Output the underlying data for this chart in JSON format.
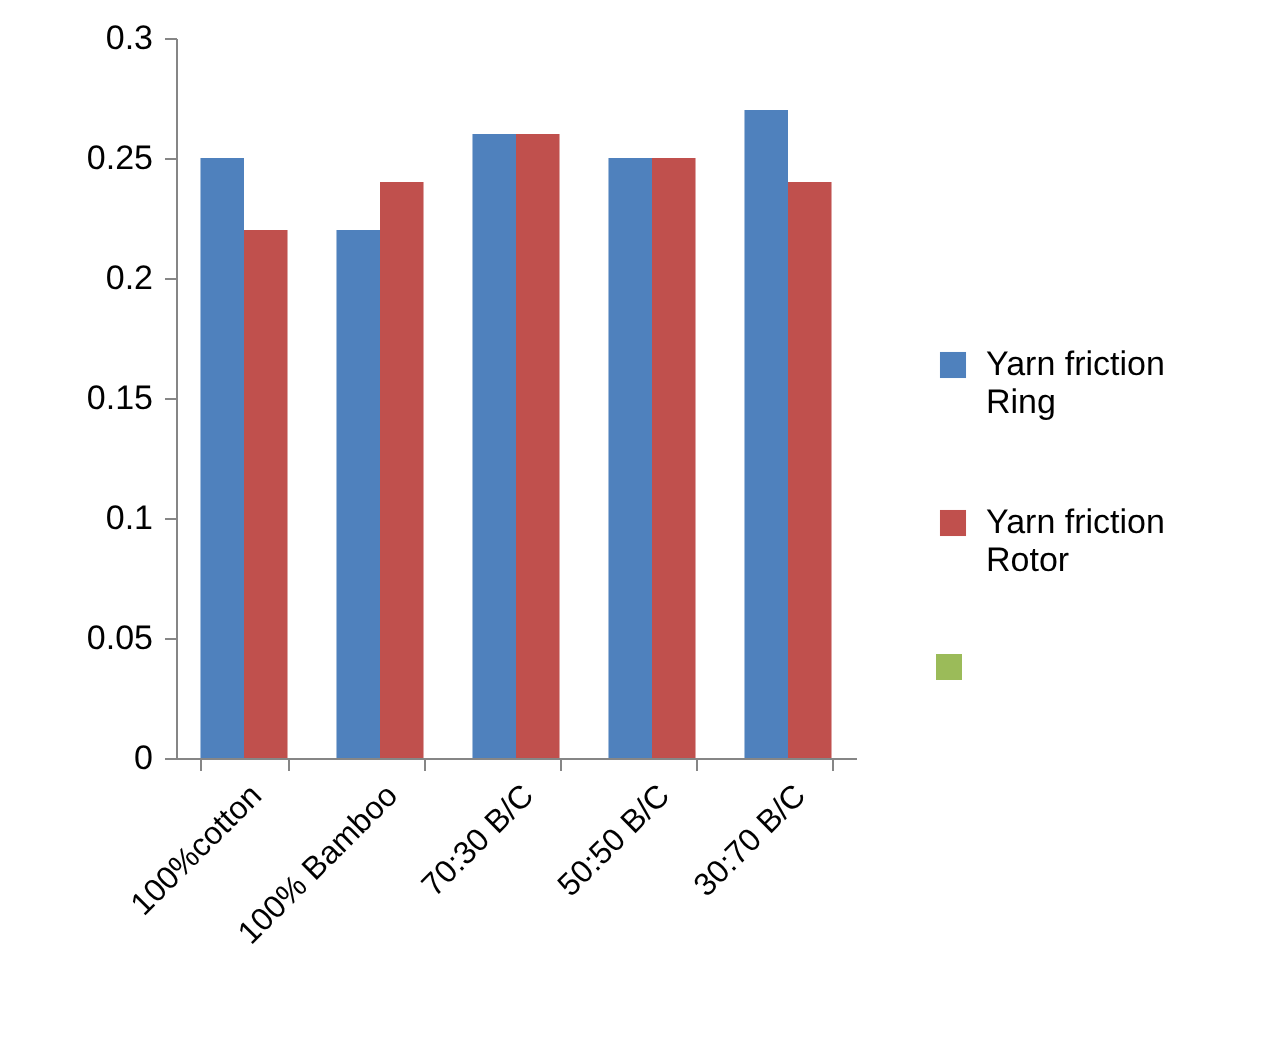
{
  "chart_data": {
    "type": "bar",
    "categories": [
      "100%cotton",
      "100% Bamboo",
      "70:30 B/C",
      "50:50  B/C",
      "30:70  B/C"
    ],
    "series": [
      {
        "name": "Yarn friction Ring",
        "color": "#4f81bd",
        "values": [
          0.25,
          0.22,
          0.26,
          0.25,
          0.27
        ]
      },
      {
        "name": "Yarn friction Rotor",
        "color": "#c0504d",
        "values": [
          0.22,
          0.24,
          0.26,
          0.25,
          0.24
        ]
      }
    ],
    "ylim": [
      0,
      0.3
    ],
    "yticks": [
      0,
      0.05,
      0.1,
      0.15,
      0.2,
      0.25,
      0.3
    ],
    "grid": false,
    "legend": "right"
  }
}
